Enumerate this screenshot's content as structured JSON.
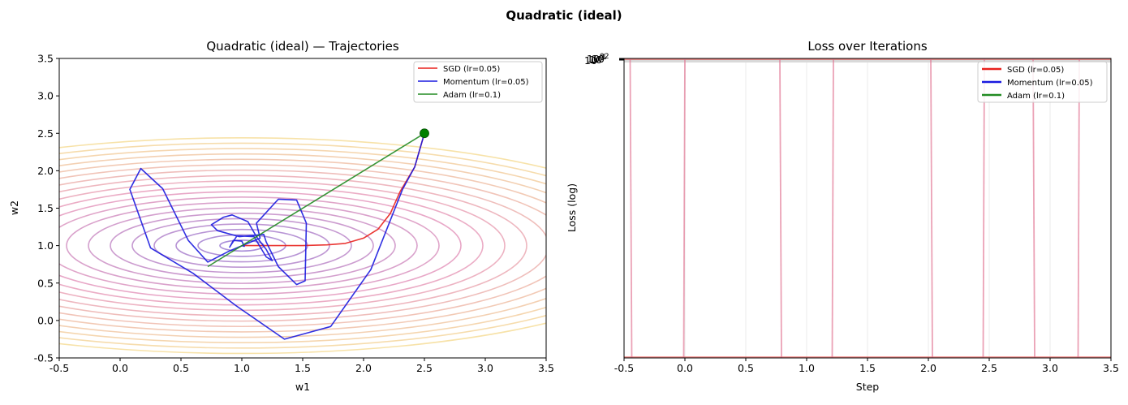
{
  "suptitle": "Quadratic (ideal)",
  "colors": {
    "sgd": "#e8211d",
    "momentum": "#1a1adf",
    "adam": "#228b22",
    "start_marker": "#008000",
    "contour_inner": "#7b52c4",
    "contour_mid": "#e07aa8",
    "contour_outer": "#f3d37a"
  },
  "chart_data": [
    {
      "type": "line",
      "title": "Quadratic (ideal) — Trajectories",
      "xlabel": "w1",
      "ylabel": "w2",
      "xlim": [
        -0.5,
        3.5
      ],
      "ylim": [
        -0.5,
        3.5
      ],
      "xticks": [
        "-0.5",
        "0.0",
        "0.5",
        "1.0",
        "1.5",
        "2.0",
        "2.5",
        "3.0",
        "3.5"
      ],
      "yticks": [
        "-0.5",
        "0.0",
        "0.5",
        "1.0",
        "1.5",
        "2.0",
        "2.5",
        "3.0",
        "3.5"
      ],
      "contours": {
        "center": [
          1.0,
          1.0
        ],
        "x_scale": 1.0,
        "y_scale": 2.5,
        "levels": 20,
        "level_step": 0.18
      },
      "start_point": [
        2.5,
        2.5
      ],
      "legend_position": "top-right",
      "series": [
        {
          "name": "SGD (lr=0.05)",
          "points": [
            [
              2.5,
              2.5
            ],
            [
              2.42,
              2.05
            ],
            [
              2.3,
              1.72
            ],
            [
              2.22,
              1.43
            ],
            [
              2.12,
              1.22
            ],
            [
              2.0,
              1.1
            ],
            [
              1.85,
              1.03
            ],
            [
              1.7,
              1.01
            ],
            [
              1.5,
              1.0
            ],
            [
              1.3,
              1.0
            ],
            [
              1.15,
              1.0
            ],
            [
              1.05,
              1.0
            ],
            [
              1.0,
              1.0
            ]
          ]
        },
        {
          "name": "Momentum (lr=0.05)",
          "points": [
            [
              2.5,
              2.5
            ],
            [
              2.42,
              2.05
            ],
            [
              2.32,
              1.75
            ],
            [
              2.06,
              0.68
            ],
            [
              1.73,
              -0.08
            ],
            [
              1.35,
              -0.25
            ],
            [
              0.95,
              0.2
            ],
            [
              0.6,
              0.63
            ],
            [
              0.25,
              0.97
            ],
            [
              0.08,
              1.75
            ],
            [
              0.17,
              2.03
            ],
            [
              0.35,
              1.76
            ],
            [
              0.56,
              1.07
            ],
            [
              0.72,
              0.78
            ],
            [
              0.9,
              0.93
            ],
            [
              1.15,
              1.1
            ],
            [
              1.12,
              1.3
            ],
            [
              1.3,
              1.62
            ],
            [
              1.45,
              1.61
            ],
            [
              1.53,
              1.3
            ],
            [
              1.52,
              0.53
            ],
            [
              1.45,
              0.48
            ],
            [
              1.3,
              0.72
            ],
            [
              1.2,
              1.05
            ],
            [
              1.18,
              1.15
            ],
            [
              0.98,
              1.12
            ],
            [
              0.8,
              1.2
            ],
            [
              0.75,
              1.28
            ],
            [
              0.85,
              1.38
            ],
            [
              0.92,
              1.41
            ],
            [
              1.05,
              1.32
            ],
            [
              1.12,
              1.12
            ],
            [
              1.2,
              0.95
            ],
            [
              1.25,
              0.8
            ],
            [
              1.2,
              0.85
            ],
            [
              1.1,
              1.12
            ],
            [
              0.96,
              1.13
            ],
            [
              0.9,
              0.98
            ],
            [
              0.93,
              1.07
            ],
            [
              1.0,
              1.06
            ],
            [
              1.02,
              0.99
            ],
            [
              1.0,
              1.0
            ]
          ]
        },
        {
          "name": "Adam (lr=0.1)",
          "points": [
            [
              2.5,
              2.5
            ],
            [
              0.72,
              0.72
            ]
          ]
        }
      ]
    },
    {
      "type": "line",
      "title": "Loss over Iterations",
      "xlabel": "Step",
      "ylabel": "Loss (log)",
      "xlim": [
        -0.5,
        3.5
      ],
      "xticks": [
        "-0.5",
        "0.0",
        "0.5",
        "1.0",
        "1.5",
        "2.0",
        "2.5",
        "3.0",
        "3.5"
      ],
      "yscale": "log",
      "ytick_labels": [
        "10",
        "10",
        "10",
        "10"
      ],
      "ytick_exponents": [
        "-1",
        "0",
        "1",
        "2"
      ],
      "vertical_traces_x": [
        -0.45,
        0.0,
        0.78,
        1.22,
        2.02,
        2.46,
        2.86,
        3.24
      ],
      "legend_position": "top-right",
      "series": [
        {
          "name": "SGD (lr=0.05)"
        },
        {
          "name": "Momentum (lr=0.05)"
        },
        {
          "name": "Adam (lr=0.1)"
        }
      ]
    }
  ]
}
